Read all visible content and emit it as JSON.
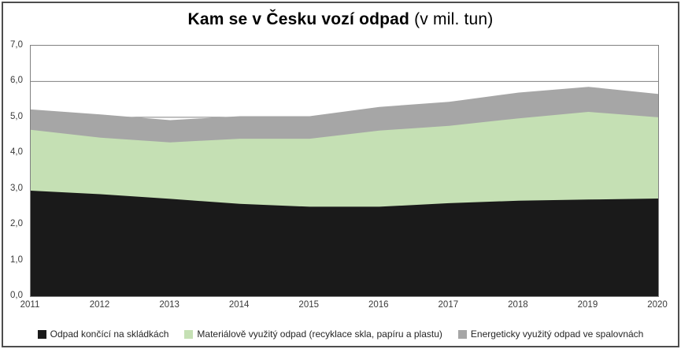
{
  "title": {
    "main": "Kam se v Česku vozí odpad",
    "suffix": " (v mil. tun)"
  },
  "chart_data": {
    "type": "area",
    "stacked": true,
    "title": "Kam se v Česku vozí odpad (v mil. tun)",
    "unit": "mil. tun",
    "categories": [
      "2011",
      "2012",
      "2013",
      "2014",
      "2015",
      "2016",
      "2017",
      "2018",
      "2019",
      "2020"
    ],
    "series": [
      {
        "name": "Odpad končící na skládkách",
        "color": "#1a1a1a",
        "values": [
          2.95,
          2.85,
          2.72,
          2.58,
          2.5,
          2.5,
          2.6,
          2.67,
          2.7,
          2.73
        ]
      },
      {
        "name": "Materiálově využitý odpad (recyklace skla, papíru a plastu)",
        "color": "#c5e0b4",
        "values": [
          1.7,
          1.58,
          1.58,
          1.82,
          1.9,
          2.13,
          2.16,
          2.3,
          2.45,
          2.27
        ]
      },
      {
        "name": "Energeticky využitý odpad ve spalovnách",
        "color": "#a6a6a6",
        "values": [
          0.57,
          0.65,
          0.62,
          0.63,
          0.63,
          0.66,
          0.67,
          0.72,
          0.7,
          0.65
        ]
      }
    ],
    "totals": [
      5.22,
      5.08,
      4.92,
      5.03,
      5.03,
      5.29,
      5.43,
      5.69,
      5.85,
      5.65
    ],
    "ylim": [
      0,
      7
    ],
    "y_tick_step": 1,
    "y_tick_labels": [
      "0,0",
      "1,0",
      "2,0",
      "3,0",
      "4,0",
      "5,0",
      "6,0",
      "7,0"
    ],
    "grid": true,
    "legend_position": "bottom",
    "xlabel": "",
    "ylabel": ""
  },
  "colors": {
    "grid": "#808080",
    "plot_border": "#808080",
    "axis_text": "#3a3a3a",
    "legend_text": "#262626",
    "background": "#ffffff",
    "outer_border": "#4d4d4d"
  }
}
